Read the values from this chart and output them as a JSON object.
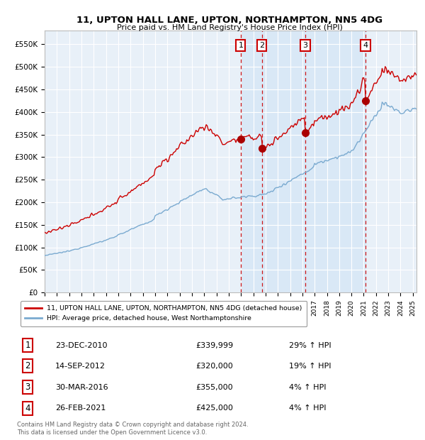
{
  "title": "11, UPTON HALL LANE, UPTON, NORTHAMPTON, NN5 4DG",
  "subtitle": "Price paid vs. HM Land Registry's House Price Index (HPI)",
  "xlim_start": 1995.0,
  "xlim_end": 2025.3,
  "ylim": [
    0,
    580000
  ],
  "yticks": [
    0,
    50000,
    100000,
    150000,
    200000,
    250000,
    300000,
    350000,
    400000,
    450000,
    500000,
    550000
  ],
  "ytick_labels": [
    "£0",
    "£50K",
    "£100K",
    "£150K",
    "£200K",
    "£250K",
    "£300K",
    "£350K",
    "£400K",
    "£450K",
    "£500K",
    "£550K"
  ],
  "xtick_years": [
    1995,
    1996,
    1997,
    1998,
    1999,
    2000,
    2001,
    2002,
    2003,
    2004,
    2005,
    2006,
    2007,
    2008,
    2009,
    2010,
    2011,
    2012,
    2013,
    2014,
    2015,
    2016,
    2017,
    2018,
    2019,
    2020,
    2021,
    2022,
    2023,
    2024,
    2025
  ],
  "sale_dates": [
    2010.978,
    2012.706,
    2016.245,
    2021.154
  ],
  "sale_prices": [
    339999,
    320000,
    355000,
    425000
  ],
  "sale_labels": [
    "1",
    "2",
    "3",
    "4"
  ],
  "legend_line1": "11, UPTON HALL LANE, UPTON, NORTHAMPTON, NN5 4DG (detached house)",
  "legend_line2": "HPI: Average price, detached house, West Northamptonshire",
  "table_rows": [
    [
      "1",
      "23-DEC-2010",
      "£339,999",
      "29% ↑ HPI"
    ],
    [
      "2",
      "14-SEP-2012",
      "£320,000",
      "19% ↑ HPI"
    ],
    [
      "3",
      "30-MAR-2016",
      "£355,000",
      "4% ↑ HPI"
    ],
    [
      "4",
      "26-FEB-2021",
      "£425,000",
      "4% ↑ HPI"
    ]
  ],
  "footer": "Contains HM Land Registry data © Crown copyright and database right 2024.\nThis data is licensed under the Open Government Licence v3.0.",
  "background_color": "#ffffff",
  "plot_bg_color": "#e8f0f8",
  "grid_color": "#ffffff",
  "red_line_color": "#cc0000",
  "blue_line_color": "#7aaad0",
  "shade_color": "#d0e4f5",
  "vline_color": "#cc0000"
}
